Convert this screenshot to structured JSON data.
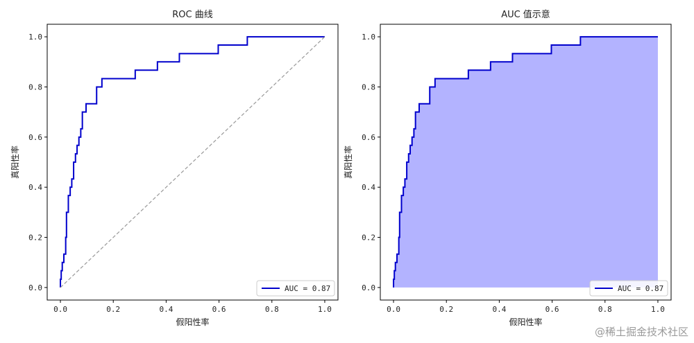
{
  "chart_data": [
    {
      "type": "line",
      "title": "ROC 曲线",
      "xlabel": "假阳性率",
      "ylabel": "真阳性率",
      "xlim": [
        -0.05,
        1.05
      ],
      "ylim": [
        -0.05,
        1.05
      ],
      "xticks": [
        "0.0",
        "0.2",
        "0.4",
        "0.6",
        "0.8",
        "1.0"
      ],
      "yticks": [
        "0.0",
        "0.2",
        "0.4",
        "0.6",
        "0.8",
        "1.0"
      ],
      "grid": false,
      "legend": "lower-right",
      "series": [
        {
          "name": "AUC = 0.87",
          "color": "#0000cc",
          "x": [
            0.0,
            0.0,
            0.003,
            0.003,
            0.007,
            0.007,
            0.013,
            0.013,
            0.02,
            0.02,
            0.023,
            0.023,
            0.03,
            0.03,
            0.037,
            0.037,
            0.043,
            0.043,
            0.05,
            0.05,
            0.057,
            0.057,
            0.063,
            0.063,
            0.07,
            0.07,
            0.077,
            0.077,
            0.083,
            0.083,
            0.097,
            0.097,
            0.137,
            0.137,
            0.157,
            0.157,
            0.163,
            0.163,
            0.283,
            0.283,
            0.367,
            0.367,
            0.45,
            0.45,
            0.597,
            0.597,
            0.707,
            0.707,
            1.0
          ],
          "y": [
            0.0,
            0.033,
            0.033,
            0.067,
            0.067,
            0.1,
            0.1,
            0.133,
            0.133,
            0.2,
            0.2,
            0.3,
            0.3,
            0.367,
            0.367,
            0.4,
            0.4,
            0.433,
            0.433,
            0.5,
            0.5,
            0.533,
            0.533,
            0.567,
            0.567,
            0.6,
            0.6,
            0.633,
            0.633,
            0.7,
            0.7,
            0.733,
            0.733,
            0.8,
            0.8,
            0.833,
            0.833,
            0.833,
            0.833,
            0.867,
            0.867,
            0.9,
            0.9,
            0.933,
            0.933,
            0.967,
            0.967,
            1.0,
            1.0
          ]
        },
        {
          "name": "",
          "color": "#999999",
          "dashed": true,
          "x": [
            0,
            1
          ],
          "y": [
            0,
            1
          ]
        }
      ]
    },
    {
      "type": "area",
      "title": "AUC 值示意",
      "xlabel": "假阳性率",
      "ylabel": "真阳性率",
      "xlim": [
        -0.05,
        1.05
      ],
      "ylim": [
        -0.05,
        1.05
      ],
      "xticks": [
        "0.0",
        "0.2",
        "0.4",
        "0.6",
        "0.8",
        "1.0"
      ],
      "yticks": [
        "0.0",
        "0.2",
        "0.4",
        "0.6",
        "0.8",
        "1.0"
      ],
      "grid": false,
      "legend": "lower-right",
      "fill_color": "#b3b3ff",
      "series": [
        {
          "name": "AUC = 0.87",
          "color": "#0000cc",
          "x": [
            0.0,
            0.0,
            0.003,
            0.003,
            0.007,
            0.007,
            0.013,
            0.013,
            0.02,
            0.02,
            0.023,
            0.023,
            0.03,
            0.03,
            0.037,
            0.037,
            0.043,
            0.043,
            0.05,
            0.05,
            0.057,
            0.057,
            0.063,
            0.063,
            0.07,
            0.07,
            0.077,
            0.077,
            0.083,
            0.083,
            0.097,
            0.097,
            0.137,
            0.137,
            0.157,
            0.157,
            0.163,
            0.163,
            0.283,
            0.283,
            0.367,
            0.367,
            0.45,
            0.45,
            0.597,
            0.597,
            0.707,
            0.707,
            1.0
          ],
          "y": [
            0.0,
            0.033,
            0.033,
            0.067,
            0.067,
            0.1,
            0.1,
            0.133,
            0.133,
            0.2,
            0.2,
            0.3,
            0.3,
            0.367,
            0.367,
            0.4,
            0.4,
            0.433,
            0.433,
            0.5,
            0.5,
            0.533,
            0.533,
            0.567,
            0.567,
            0.6,
            0.6,
            0.633,
            0.633,
            0.7,
            0.7,
            0.733,
            0.733,
            0.8,
            0.8,
            0.833,
            0.833,
            0.833,
            0.833,
            0.867,
            0.867,
            0.9,
            0.9,
            0.933,
            0.933,
            0.967,
            0.967,
            1.0,
            1.0
          ]
        }
      ]
    }
  ],
  "watermark": "@稀土掘金技术社区"
}
